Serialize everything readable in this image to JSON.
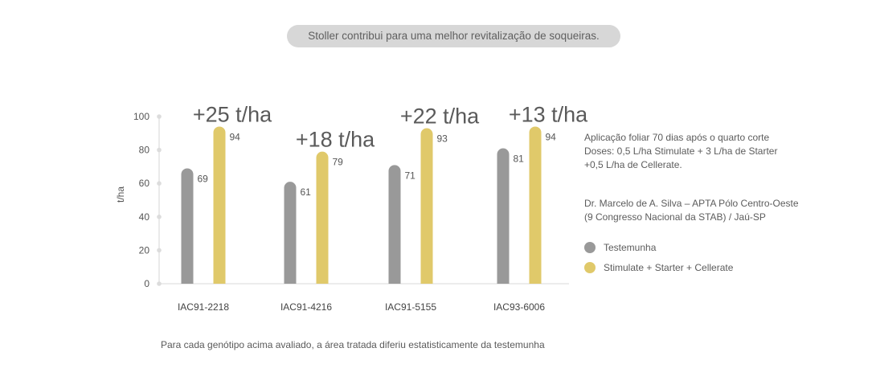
{
  "header": {
    "banner_text": "Stoller contribui para uma melhor revitalização de soqueiras."
  },
  "chart_data": {
    "type": "bar",
    "categories": [
      "IAC91-2218",
      "IAC91-4216",
      "IAC91-5155",
      "IAC93-6006"
    ],
    "series": [
      {
        "name": "Testemunha",
        "color": "#999999",
        "values": [
          69,
          61,
          71,
          81
        ]
      },
      {
        "name": "Stimulate + Starter + Cellerate",
        "color": "#e0c96a",
        "values": [
          94,
          79,
          93,
          94
        ]
      }
    ],
    "gain_labels": [
      "+25 t/ha",
      "+18 t/ha",
      "+22 t/ha",
      "+13 t/ha"
    ],
    "ylabel": "t/ha",
    "ylim": [
      0,
      100
    ],
    "yticks": [
      0,
      20,
      40,
      60,
      80,
      100
    ]
  },
  "notes": {
    "application": [
      "Aplicação foliar 70 dias após o quarto corte",
      "Doses: 0,5 L/ha Stimulate + 3 L/ha de Starter",
      "+0,5 L/ha de Cellerate."
    ],
    "source": [
      "Dr. Marcelo de A. Silva – APTA Pólo Centro-Oeste",
      "(9 Congresso Nacional da STAB) / Jaú-SP"
    ]
  },
  "legend": {
    "items": [
      {
        "label": "Testemunha",
        "color": "#999999"
      },
      {
        "label": "Stimulate + Starter + Cellerate",
        "color": "#e0c96a"
      }
    ]
  },
  "footer": {
    "note": "Para cada genótipo acima avaliado, a área tratada diferiu estatisticamente da testemunha"
  }
}
